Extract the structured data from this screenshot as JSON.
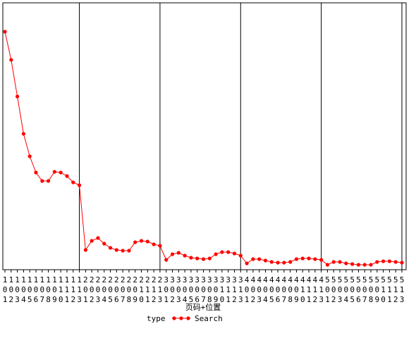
{
  "chart_data": {
    "type": "line",
    "x_label": "页码+位置",
    "legend_title": "type",
    "categories": [
      "101",
      "102",
      "103",
      "104",
      "105",
      "106",
      "107",
      "108",
      "109",
      "110",
      "111",
      "112",
      "113",
      "201",
      "202",
      "203",
      "204",
      "205",
      "206",
      "207",
      "208",
      "209",
      "210",
      "211",
      "212",
      "213",
      "301",
      "302",
      "303",
      "304",
      "305",
      "306",
      "307",
      "308",
      "309",
      "310",
      "311",
      "312",
      "313",
      "401",
      "402",
      "403",
      "404",
      "405",
      "406",
      "407",
      "408",
      "409",
      "410",
      "411",
      "412",
      "413",
      "501",
      "502",
      "503",
      "504",
      "505",
      "506",
      "507",
      "508",
      "509",
      "510",
      "511",
      "512",
      "513"
    ],
    "series": [
      {
        "name": "Search",
        "color": "#ff0000",
        "values": [
          338,
          298,
          246,
          193,
          161,
          138,
          126,
          126,
          139,
          138,
          133,
          124,
          120,
          28,
          41,
          45,
          37,
          31,
          28,
          27,
          27,
          39,
          41,
          40,
          36,
          34,
          14,
          22,
          24,
          20,
          17,
          16,
          15,
          16,
          22,
          25,
          25,
          23,
          20,
          9,
          15,
          15,
          13,
          11,
          10,
          10,
          11,
          15,
          16,
          16,
          15,
          14,
          7,
          11,
          11,
          9,
          8,
          7,
          7,
          7,
          11,
          12,
          12,
          11,
          10
        ]
      }
    ],
    "ylim": [
      0,
      378
    ],
    "reference_lines_at": [
      "113",
      "213",
      "313",
      "413",
      "513"
    ]
  }
}
